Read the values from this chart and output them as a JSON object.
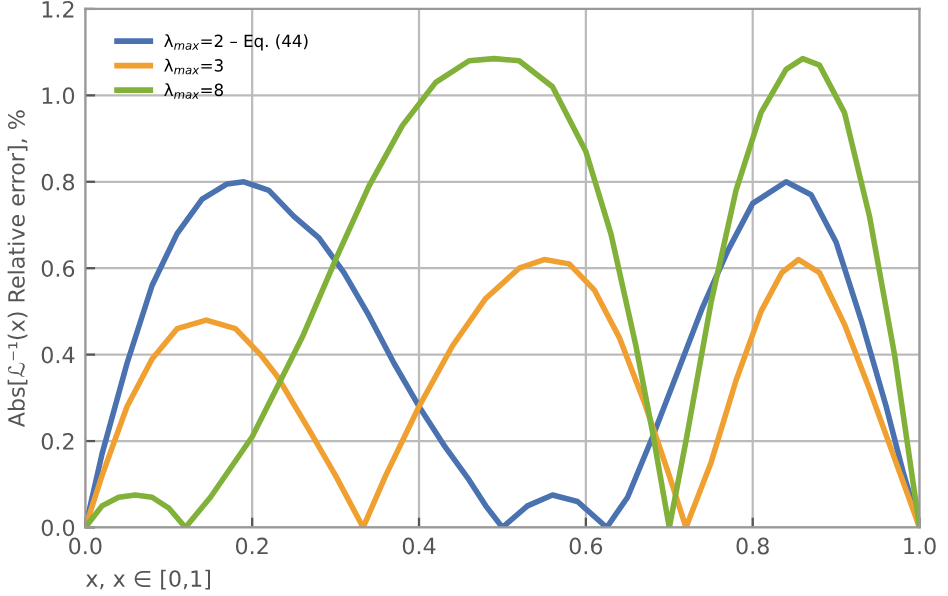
{
  "chart_data": {
    "type": "line",
    "xlabel": "x, x ∈ [0,1]",
    "ylabel": "Abs[ℒ⁻¹(x) Relative error], %",
    "xlim": [
      0,
      1
    ],
    "ylim": [
      0,
      1.2
    ],
    "xticks": [
      {
        "value": 0,
        "label": "0.0"
      },
      0.2,
      0.4,
      0.6,
      0.8,
      {
        "value": 1,
        "label": "1.0"
      }
    ],
    "yticks": [
      {
        "value": 0,
        "label": "0.0"
      },
      0.2,
      0.4,
      0.6,
      0.8,
      {
        "value": 1,
        "label": "1.0"
      },
      1.2
    ],
    "grid": true,
    "legend": "top left",
    "marker": "none",
    "line_style": "solid",
    "series": [
      {
        "name": "λ$_{max}$=2 – Eq. (44)",
        "color": "#4a72b0",
        "x": [
          0,
          0.02,
          0.05,
          0.08,
          0.11,
          0.14,
          0.17,
          0.19,
          0.22,
          0.25,
          0.28,
          0.31,
          0.34,
          0.37,
          0.4,
          0.43,
          0.46,
          0.48,
          0.5,
          0.53,
          0.56,
          0.59,
          0.625,
          0.65,
          0.68,
          0.71,
          0.74,
          0.77,
          0.8,
          0.84,
          0.87,
          0.9,
          0.93,
          0.96,
          0.98,
          1.0
        ],
        "values": [
          0,
          0.17,
          0.38,
          0.56,
          0.68,
          0.76,
          0.795,
          0.8,
          0.78,
          0.72,
          0.67,
          0.59,
          0.49,
          0.38,
          0.28,
          0.19,
          0.11,
          0.05,
          0,
          0.05,
          0.075,
          0.06,
          0,
          0.07,
          0.21,
          0.36,
          0.51,
          0.64,
          0.75,
          0.8,
          0.77,
          0.66,
          0.48,
          0.28,
          0.13,
          0
        ]
      },
      {
        "name": "λ$_{max}$=3",
        "color": "#f0a030",
        "x": [
          0,
          0.02,
          0.05,
          0.08,
          0.11,
          0.145,
          0.18,
          0.21,
          0.23,
          0.27,
          0.3,
          0.333,
          0.36,
          0.4,
          0.44,
          0.48,
          0.52,
          0.55,
          0.58,
          0.61,
          0.64,
          0.67,
          0.7,
          0.72,
          0.75,
          0.78,
          0.81,
          0.835,
          0.855,
          0.88,
          0.91,
          0.94,
          0.97,
          1.0
        ],
        "values": [
          0,
          0.12,
          0.28,
          0.39,
          0.46,
          0.48,
          0.46,
          0.4,
          0.35,
          0.22,
          0.12,
          0,
          0.12,
          0.28,
          0.42,
          0.53,
          0.6,
          0.62,
          0.61,
          0.55,
          0.44,
          0.29,
          0.12,
          0,
          0.15,
          0.34,
          0.5,
          0.59,
          0.62,
          0.59,
          0.47,
          0.32,
          0.16,
          0
        ]
      },
      {
        "name": "λ$_{max}$=8",
        "color": "#82b13a",
        "x": [
          0,
          0.02,
          0.04,
          0.06,
          0.08,
          0.1,
          0.12,
          0.15,
          0.2,
          0.234,
          0.26,
          0.3,
          0.34,
          0.38,
          0.42,
          0.46,
          0.49,
          0.52,
          0.56,
          0.6,
          0.63,
          0.66,
          0.68,
          0.7,
          0.72,
          0.75,
          0.78,
          0.81,
          0.84,
          0.86,
          0.88,
          0.91,
          0.94,
          0.97,
          1.0
        ],
        "values": [
          0,
          0.05,
          0.07,
          0.075,
          0.07,
          0.045,
          0,
          0.07,
          0.21,
          0.34,
          0.44,
          0.62,
          0.79,
          0.93,
          1.03,
          1.08,
          1.085,
          1.08,
          1.02,
          0.87,
          0.68,
          0.42,
          0.22,
          0,
          0.2,
          0.52,
          0.78,
          0.96,
          1.06,
          1.085,
          1.07,
          0.96,
          0.72,
          0.4,
          0
        ]
      }
    ]
  }
}
